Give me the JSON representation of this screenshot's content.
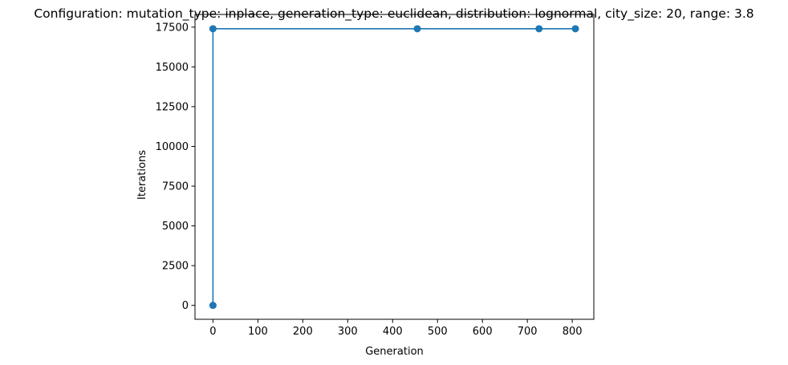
{
  "chart_data": {
    "type": "line",
    "title": "Configuration: mutation_type: inplace, generation_type: euclidean, distribution: lognormal, city_size: 20, range: 3.8",
    "xlabel": "Generation",
    "ylabel": "Iterations",
    "xlim": [
      -40,
      848
    ],
    "ylim": [
      -875,
      18300
    ],
    "xticks": [
      0,
      100,
      200,
      300,
      400,
      500,
      600,
      700,
      800
    ],
    "yticks": [
      0,
      2500,
      5000,
      7500,
      10000,
      12500,
      15000,
      17500
    ],
    "grid": false,
    "series": [
      {
        "x": [
          0,
          0,
          455,
          726,
          807
        ],
        "y": [
          0,
          17400,
          17400,
          17400,
          17400
        ],
        "color": "#1f77b4",
        "marker": "circle"
      }
    ]
  }
}
